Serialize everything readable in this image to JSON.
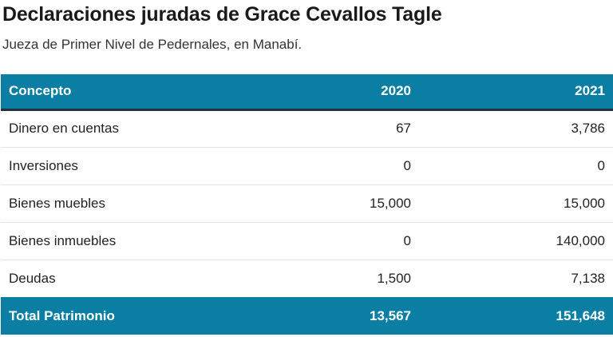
{
  "title": "Declaraciones juradas de Grace Cevallos Tagle",
  "subtitle": "Jueza de Primer Nivel de Pedernales, en Manabí.",
  "colors": {
    "header_bg": "#0a7fa3",
    "header_text": "#ffffff",
    "header_rule": "#1f3140",
    "row_divider": "#e3e3e3"
  },
  "chart_data": {
    "type": "table",
    "title": "Declaraciones juradas de Grace Cevallos Tagle",
    "subtitle": "Jueza de Primer Nivel de Pedernales, en Manabí.",
    "columns": [
      "Concepto",
      "2020",
      "2021"
    ],
    "rows": [
      [
        "Dinero en cuentas",
        "67",
        "3,786"
      ],
      [
        "Inversiones",
        "0",
        "0"
      ],
      [
        "Bienes muebles",
        "15,000",
        "15,000"
      ],
      [
        "Bienes inmuebles",
        "0",
        "140,000"
      ],
      [
        "Deudas",
        "1,500",
        "7,138"
      ]
    ],
    "total": [
      "Total Patrimonio",
      "13,567",
      "151,648"
    ]
  }
}
